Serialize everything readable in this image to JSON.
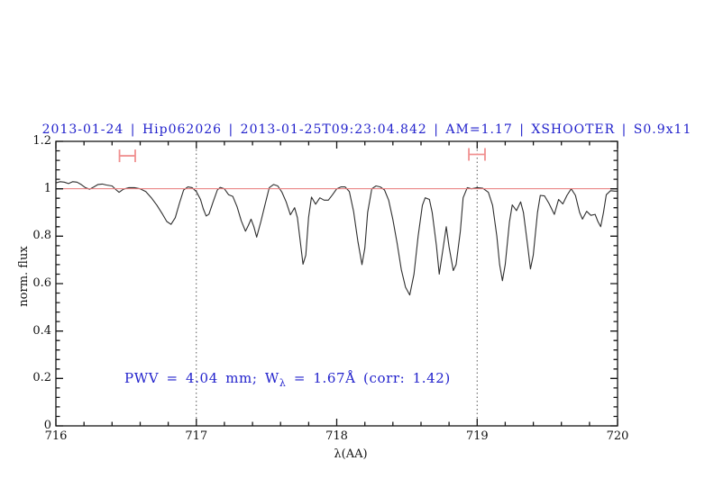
{
  "title": {
    "text": "2013-01-24 | Hip062026 | 2013-01-25T09:23:04.842 | AM=1.17 | XSHOOTER | S0.9x11"
  },
  "axes": {
    "ylabel": "norm. flux",
    "xlabel": "λ(AA)"
  },
  "annotation": {
    "prefix": "PWV = 4.04 mm; W",
    "lambda_sub": "λ",
    "suffix": " = 1.67Å (corr: 1.42)"
  },
  "colors": {
    "accent_blue": "#2222cc",
    "reference_red": "#e87878",
    "marker_red": "#f09090",
    "curve": "#2e2e2e",
    "frame": "#151515",
    "dotted_line": "#555555"
  },
  "chart_data": {
    "type": "line",
    "title": "2013-01-24 | Hip062026 | 2013-01-25T09:23:04.842 | AM=1.17 | XSHOOTER | S0.9x11",
    "xlabel": "λ(AA)",
    "ylabel": "norm. flux",
    "xlim": [
      716,
      720
    ],
    "ylim": [
      0,
      1.2
    ],
    "xticks": [
      716,
      717,
      718,
      719,
      720
    ],
    "xtick_labels": [
      "716",
      "717",
      "718",
      "719",
      "720"
    ],
    "yticks": [
      0,
      0.2,
      0.4,
      0.6,
      0.8,
      1,
      1.2
    ],
    "ytick_labels": [
      "0",
      "0.2",
      "0.4",
      "0.6",
      "0.8",
      "1",
      "1.2"
    ],
    "x_minor_step": 0.2,
    "y_minor_step": 0.04,
    "grid": false,
    "legend": null,
    "annotation_text": "PWV = 4.04 mm; W_λ = 1.67Å (corr: 1.42)",
    "reference_line": {
      "y": 1.0
    },
    "dotted_vlines": [
      717,
      719
    ],
    "range_markers": [
      {
        "x1": 716.453,
        "x2": 716.565,
        "y": 1.139
      },
      {
        "x1": 718.941,
        "x2": 719.056,
        "y": 1.145
      }
    ],
    "series": [
      {
        "name": "normalized telluric spectrum",
        "x": [
          716.0,
          716.03,
          716.06,
          716.09,
          716.12,
          716.15,
          716.18,
          716.21,
          716.24,
          716.27,
          716.3,
          716.33,
          716.36,
          716.4,
          716.43,
          716.45,
          716.48,
          716.52,
          716.56,
          716.6,
          716.64,
          716.68,
          716.72,
          716.76,
          716.79,
          716.82,
          716.85,
          716.88,
          716.91,
          716.94,
          716.97,
          717.0,
          717.03,
          717.05,
          717.07,
          717.09,
          717.12,
          717.15,
          717.17,
          717.2,
          717.23,
          717.26,
          717.29,
          717.32,
          717.35,
          717.37,
          717.39,
          717.41,
          717.43,
          717.46,
          717.49,
          717.52,
          717.55,
          717.58,
          717.61,
          717.64,
          717.67,
          717.7,
          717.72,
          717.74,
          717.76,
          717.78,
          717.8,
          717.82,
          717.85,
          717.88,
          717.91,
          717.94,
          717.97,
          718.0,
          718.03,
          718.06,
          718.09,
          718.12,
          718.15,
          718.18,
          718.2,
          718.22,
          718.25,
          718.28,
          718.31,
          718.34,
          718.37,
          718.4,
          718.43,
          718.46,
          718.49,
          718.52,
          718.55,
          718.58,
          718.61,
          718.63,
          718.66,
          718.68,
          718.71,
          718.73,
          718.76,
          718.78,
          718.8,
          718.83,
          718.85,
          718.88,
          718.9,
          718.93,
          718.96,
          719.0,
          719.04,
          719.08,
          719.11,
          719.14,
          719.16,
          719.18,
          719.2,
          719.23,
          719.25,
          719.28,
          719.31,
          719.33,
          719.36,
          719.38,
          719.4,
          719.43,
          719.45,
          719.48,
          719.51,
          719.55,
          719.58,
          719.61,
          719.64,
          719.67,
          719.7,
          719.73,
          719.75,
          719.78,
          719.81,
          719.84,
          719.86,
          719.88,
          719.9,
          719.92,
          719.95,
          719.98,
          720.0
        ],
        "y": [
          1.025,
          1.03,
          1.028,
          1.022,
          1.03,
          1.028,
          1.018,
          1.005,
          0.998,
          1.008,
          1.018,
          1.02,
          1.016,
          1.012,
          0.995,
          0.985,
          0.998,
          1.005,
          1.005,
          1.0,
          0.988,
          0.962,
          0.93,
          0.892,
          0.862,
          0.85,
          0.878,
          0.94,
          0.995,
          1.008,
          1.005,
          0.988,
          0.955,
          0.915,
          0.885,
          0.893,
          0.945,
          0.995,
          1.006,
          1.0,
          0.975,
          0.968,
          0.925,
          0.865,
          0.821,
          0.845,
          0.872,
          0.84,
          0.796,
          0.862,
          0.935,
          1.005,
          1.018,
          1.012,
          0.985,
          0.945,
          0.89,
          0.92,
          0.878,
          0.78,
          0.682,
          0.72,
          0.88,
          0.965,
          0.935,
          0.962,
          0.952,
          0.952,
          0.975,
          1.0,
          1.008,
          1.008,
          0.988,
          0.905,
          0.78,
          0.68,
          0.75,
          0.9,
          1.0,
          1.012,
          1.008,
          0.995,
          0.952,
          0.87,
          0.77,
          0.66,
          0.585,
          0.552,
          0.64,
          0.8,
          0.93,
          0.962,
          0.955,
          0.9,
          0.76,
          0.64,
          0.76,
          0.84,
          0.755,
          0.655,
          0.68,
          0.82,
          0.962,
          1.005,
          1.0,
          1.005,
          1.002,
          0.985,
          0.93,
          0.8,
          0.68,
          0.612,
          0.68,
          0.86,
          0.932,
          0.908,
          0.945,
          0.9,
          0.76,
          0.662,
          0.72,
          0.9,
          0.972,
          0.97,
          0.94,
          0.892,
          0.955,
          0.936,
          0.972,
          1.0,
          0.972,
          0.9,
          0.872,
          0.905,
          0.888,
          0.892,
          0.862,
          0.84,
          0.9,
          0.975,
          0.992,
          0.99,
          0.99
        ]
      }
    ]
  }
}
